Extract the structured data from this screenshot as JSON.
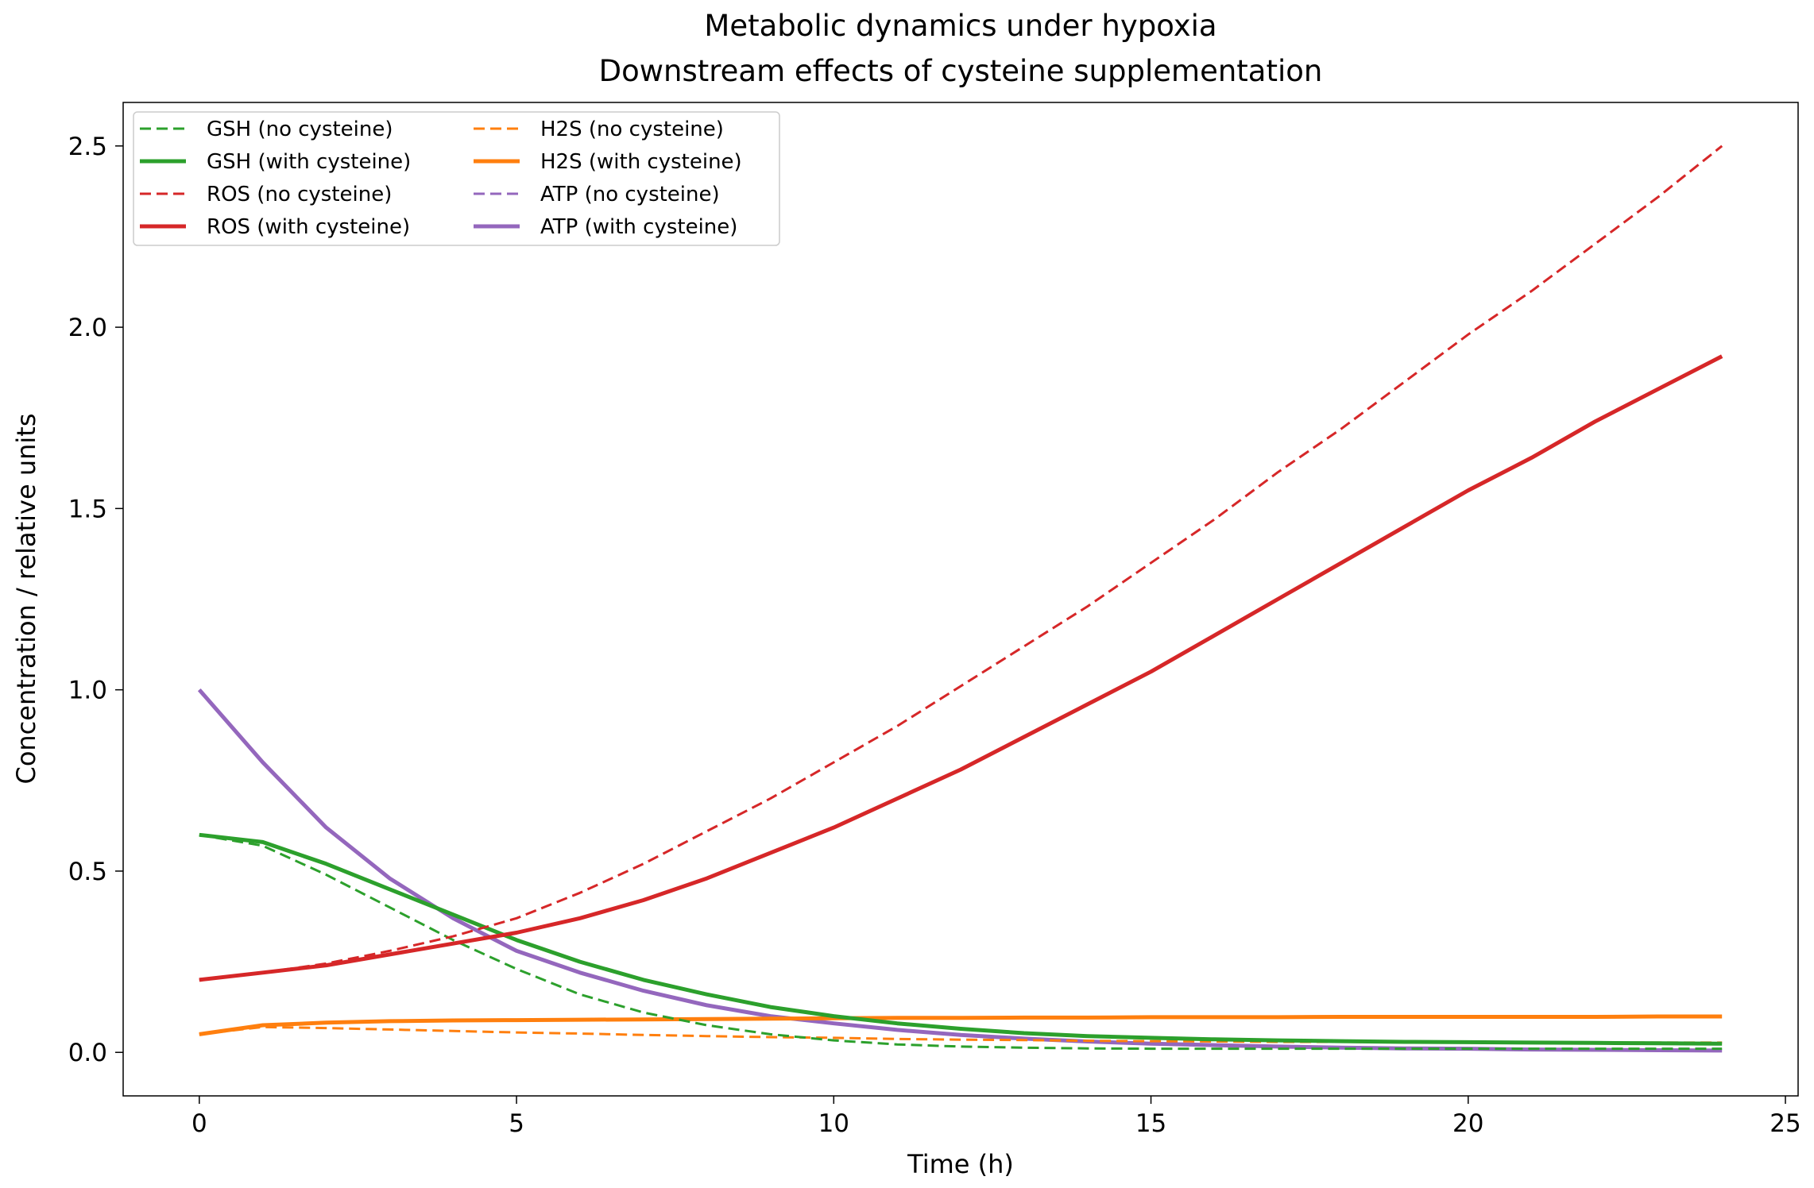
{
  "chart_data": {
    "type": "line",
    "title": "Metabolic dynamics under hypoxia",
    "subtitle": "Downstream effects of cysteine supplementation",
    "xlabel": "Time (h)",
    "ylabel": "Concentration / relative units",
    "xlim": [
      -1.2,
      25.2
    ],
    "ylim": [
      -0.12,
      2.62
    ],
    "xticks": [
      0,
      5,
      10,
      15,
      20,
      25
    ],
    "yticks": [
      0.0,
      0.5,
      1.0,
      1.5,
      2.0,
      2.5
    ],
    "xtick_labels": [
      "0",
      "5",
      "10",
      "15",
      "20",
      "25"
    ],
    "ytick_labels": [
      "0.0",
      "0.5",
      "1.0",
      "1.5",
      "2.0",
      "2.5"
    ],
    "grid": false,
    "legend_placement": "top-left",
    "x": [
      0,
      1,
      2,
      3,
      4,
      5,
      6,
      7,
      8,
      9,
      10,
      11,
      12,
      13,
      14,
      15,
      16,
      17,
      18,
      19,
      20,
      21,
      22,
      23,
      24
    ],
    "series": [
      {
        "name": "GSH (no cysteine)",
        "color": "#2ca02c",
        "dash": true,
        "values": [
          0.6,
          0.57,
          0.49,
          0.4,
          0.31,
          0.23,
          0.16,
          0.11,
          0.075,
          0.05,
          0.033,
          0.022,
          0.016,
          0.013,
          0.011,
          0.01,
          0.01,
          0.01,
          0.01,
          0.01,
          0.01,
          0.01,
          0.01,
          0.01,
          0.01
        ]
      },
      {
        "name": "GSH (with cysteine)",
        "color": "#2ca02c",
        "dash": false,
        "values": [
          0.6,
          0.58,
          0.52,
          0.45,
          0.38,
          0.31,
          0.25,
          0.2,
          0.16,
          0.125,
          0.1,
          0.08,
          0.065,
          0.053,
          0.045,
          0.04,
          0.036,
          0.033,
          0.031,
          0.029,
          0.028,
          0.027,
          0.026,
          0.025,
          0.024
        ]
      },
      {
        "name": "ROS (no cysteine)",
        "color": "#d62728",
        "dash": true,
        "values": [
          0.2,
          0.22,
          0.245,
          0.28,
          0.32,
          0.37,
          0.44,
          0.52,
          0.61,
          0.7,
          0.8,
          0.9,
          1.01,
          1.12,
          1.23,
          1.35,
          1.47,
          1.6,
          1.72,
          1.85,
          1.98,
          2.1,
          2.23,
          2.36,
          2.5
        ]
      },
      {
        "name": "ROS (with cysteine)",
        "color": "#d62728",
        "dash": false,
        "values": [
          0.2,
          0.22,
          0.24,
          0.27,
          0.3,
          0.33,
          0.37,
          0.42,
          0.48,
          0.55,
          0.62,
          0.7,
          0.78,
          0.87,
          0.96,
          1.05,
          1.15,
          1.25,
          1.35,
          1.45,
          1.55,
          1.64,
          1.74,
          1.83,
          1.92
        ]
      },
      {
        "name": "H2S (no cysteine)",
        "color": "#ff7f0e",
        "dash": true,
        "values": [
          0.05,
          0.07,
          0.067,
          0.063,
          0.059,
          0.055,
          0.052,
          0.048,
          0.045,
          0.042,
          0.04,
          0.037,
          0.035,
          0.034,
          0.032,
          0.031,
          0.03,
          0.029,
          0.029,
          0.028,
          0.028,
          0.027,
          0.027,
          0.027,
          0.027
        ]
      },
      {
        "name": "H2S (with cysteine)",
        "color": "#ff7f0e",
        "dash": false,
        "values": [
          0.05,
          0.075,
          0.082,
          0.086,
          0.088,
          0.089,
          0.09,
          0.091,
          0.092,
          0.093,
          0.094,
          0.095,
          0.095,
          0.096,
          0.096,
          0.097,
          0.097,
          0.097,
          0.098,
          0.098,
          0.098,
          0.098,
          0.098,
          0.099,
          0.099
        ]
      },
      {
        "name": "ATP (no cysteine)",
        "color": "#9467bd",
        "dash": true,
        "values": [
          1.0,
          0.8,
          0.62,
          0.48,
          0.37,
          0.28,
          0.22,
          0.17,
          0.13,
          0.1,
          0.08,
          0.062,
          0.048,
          0.038,
          0.03,
          0.024,
          0.02,
          0.016,
          0.013,
          0.011,
          0.01,
          0.008,
          0.007,
          0.006,
          0.005
        ]
      },
      {
        "name": "ATP (with cysteine)",
        "color": "#9467bd",
        "dash": false,
        "values": [
          1.0,
          0.8,
          0.62,
          0.48,
          0.37,
          0.28,
          0.22,
          0.17,
          0.13,
          0.1,
          0.08,
          0.062,
          0.048,
          0.038,
          0.03,
          0.024,
          0.02,
          0.016,
          0.013,
          0.011,
          0.01,
          0.008,
          0.007,
          0.006,
          0.005
        ]
      }
    ]
  }
}
